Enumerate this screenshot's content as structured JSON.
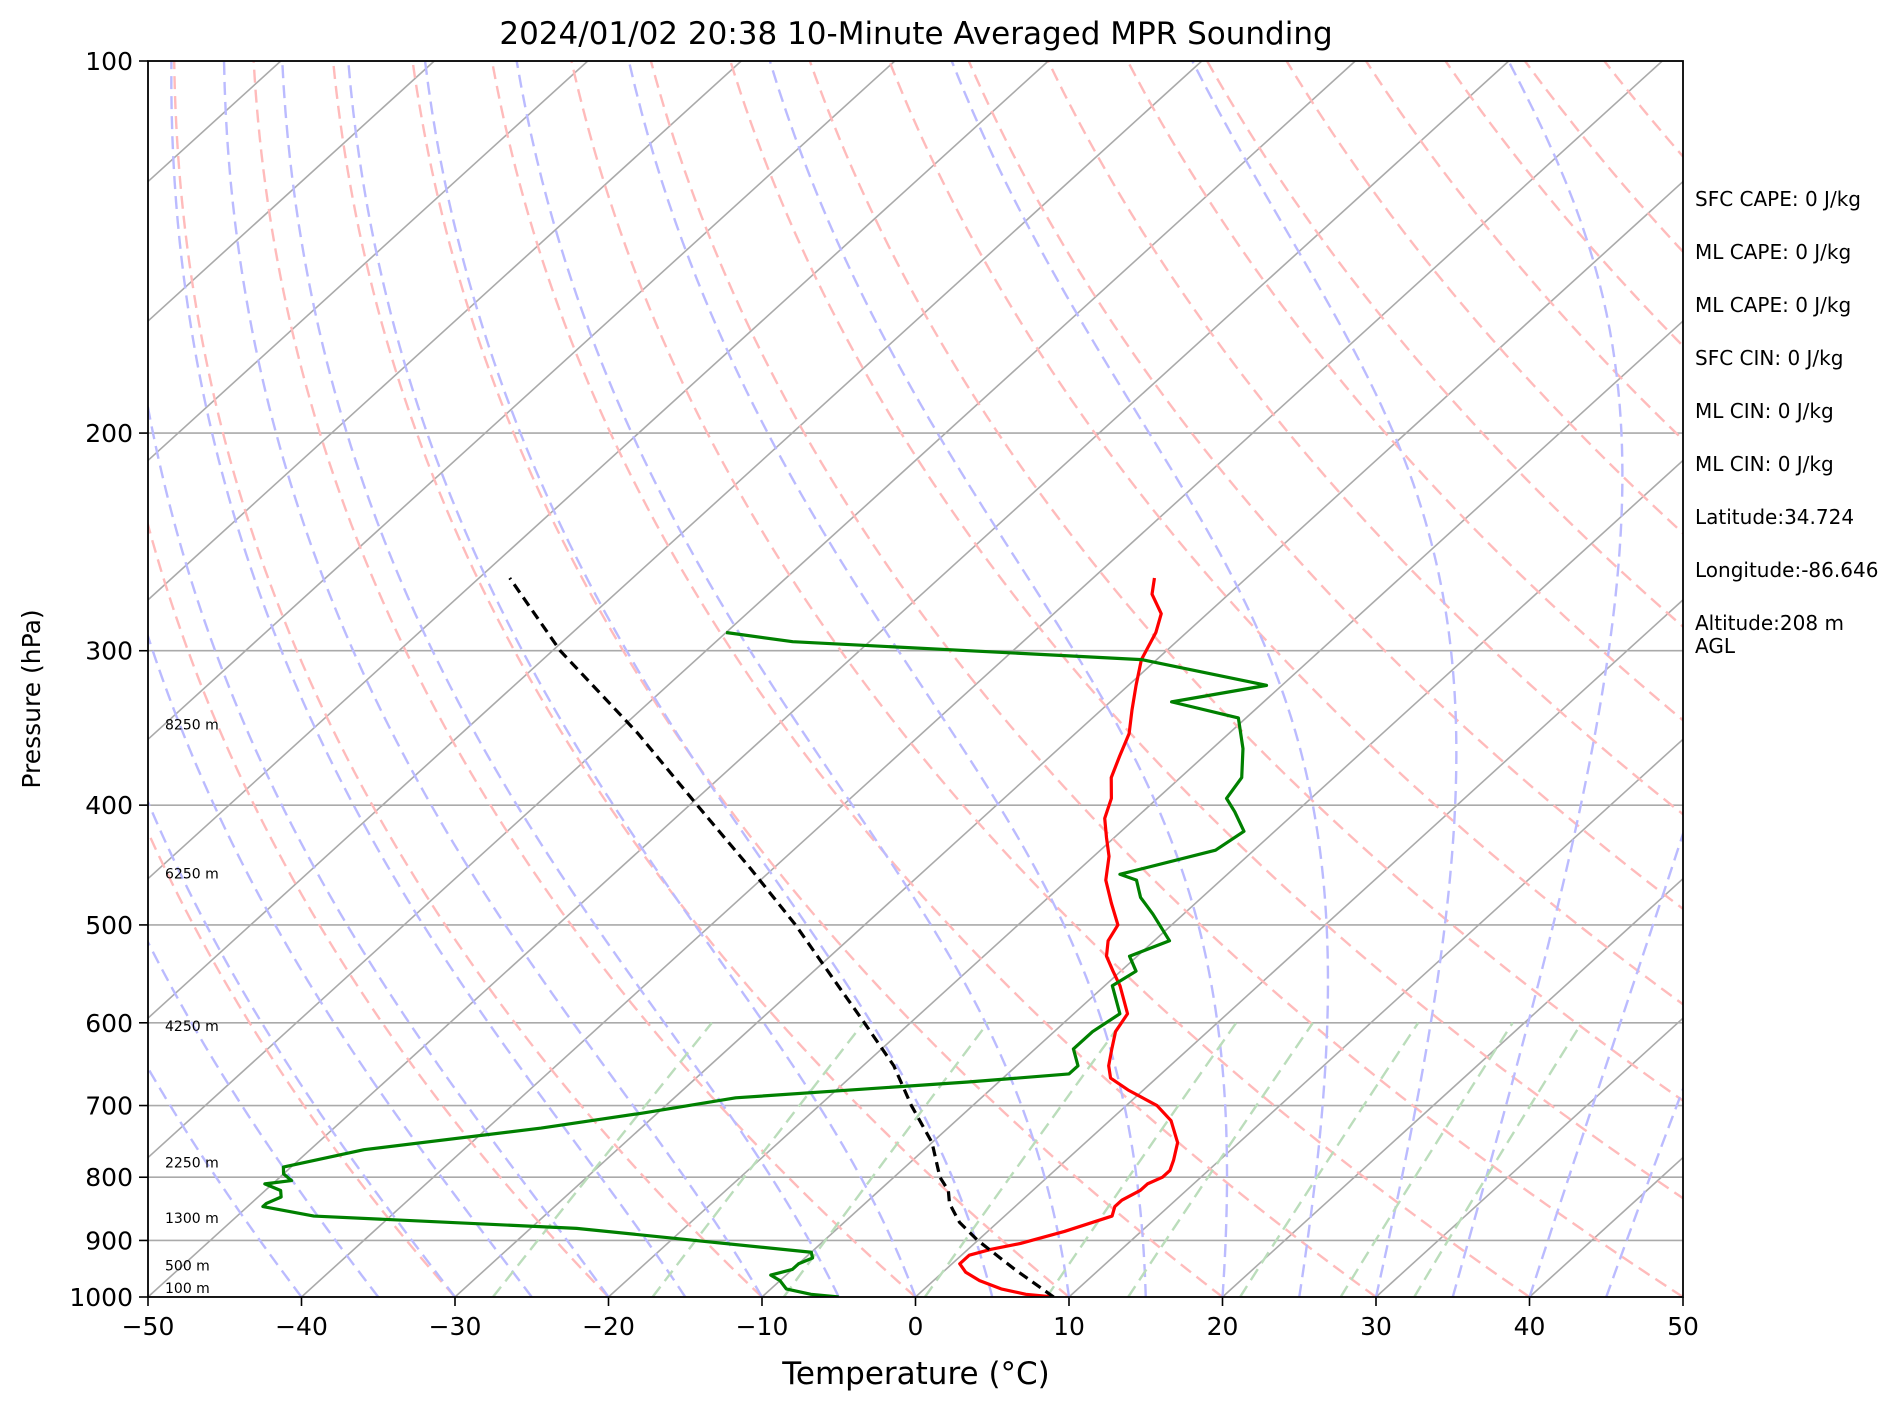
{
  "chart_data": {
    "type": "line",
    "title": "2024/01/02 20:38 10-Minute Averaged MPR Sounding",
    "xlabel": "Temperature (°C)",
    "ylabel": "Pressure (hPa)",
    "xlim": [
      -50,
      50
    ],
    "ylim": [
      1000,
      100
    ],
    "y_scale": "log",
    "skew_t": true,
    "x_ticks": [
      -50,
      -40,
      -30,
      -20,
      -10,
      0,
      10,
      20,
      30,
      40,
      50
    ],
    "x_tick_labels": [
      "−50",
      "−40",
      "−30",
      "−20",
      "−10",
      "0",
      "10",
      "20",
      "30",
      "40",
      "50"
    ],
    "y_ticks": [
      1000,
      900,
      800,
      700,
      600,
      500,
      400,
      300,
      200,
      100
    ],
    "y_tick_labels": [
      "1000",
      "900",
      "800",
      "700",
      "600",
      "500",
      "400",
      "300",
      "200",
      "100"
    ],
    "grid": true,
    "colors": {
      "temperature": "#ff0000",
      "dewpoint": "#008000",
      "parcel": "#000000",
      "isotherm": "#aaaaaa",
      "isobar": "#aaaaaa",
      "dry_adiabat": "#ffbbbb",
      "moist_adiabat": "#bbbbff",
      "mixing_ratio": "#bbddbb"
    },
    "series": [
      {
        "key": "temperature",
        "pressure": [
          1000,
          995,
          985,
          970,
          955,
          940,
          925,
          915,
          905,
          885,
          860,
          845,
          835,
          820,
          810,
          800,
          790,
          775,
          750,
          720,
          700,
          680,
          665,
          650,
          630,
          610,
          590,
          560,
          545,
          530,
          515,
          500,
          480,
          460,
          440,
          425,
          410,
          395,
          380,
          365,
          350,
          335,
          320,
          305,
          290,
          280,
          270,
          262
        ],
        "temperature": [
          9,
          7,
          5,
          3,
          1.5,
          0.5,
          0.5,
          1.5,
          3,
          5,
          7,
          6.5,
          6.5,
          7,
          7,
          7.5,
          7.5,
          7,
          6,
          4,
          2,
          -1,
          -3,
          -4,
          -5,
          -6,
          -6.5,
          -9,
          -10.5,
          -12,
          -13,
          -13.5,
          -15.5,
          -17.5,
          -19,
          -20.5,
          -22,
          -23,
          -24.5,
          -25.5,
          -26.5,
          -28,
          -29.5,
          -31,
          -32,
          -33,
          -35,
          -36
        ]
      },
      {
        "key": "dewpoint",
        "pressure": [
          1000,
          995,
          985,
          970,
          960,
          950,
          940,
          930,
          920,
          880,
          860,
          845,
          840,
          830,
          820,
          810,
          805,
          795,
          785,
          760,
          730,
          710,
          690,
          670,
          660,
          650,
          630,
          610,
          590,
          560,
          545,
          530,
          515,
          490,
          475,
          460,
          455,
          435,
          420,
          405,
          395,
          380,
          360,
          340,
          330,
          320,
          305,
          295,
          290
        ],
        "temperature": [
          -5,
          -7,
          -9,
          -10,
          -11,
          -10,
          -10,
          -9.5,
          -10,
          -27,
          -45,
          -49,
          -49,
          -48.5,
          -49,
          -50.5,
          -49,
          -50,
          -50.5,
          -46.5,
          -36.5,
          -31,
          -26,
          -12,
          -6,
          -6,
          -7.5,
          -7.5,
          -7,
          -9.5,
          -9,
          -10.5,
          -9,
          -12,
          -14,
          -15.5,
          -17,
          -12.5,
          -12,
          -14,
          -15.5,
          -16,
          -18,
          -20.5,
          -26,
          -21,
          -31,
          -55,
          -60
        ]
      },
      {
        "key": "parcel",
        "pressure": [
          1000,
          950,
          900,
          870,
          840,
          820,
          800,
          750,
          700,
          650,
          600,
          550,
          500,
          450,
          400,
          350,
          300,
          262
        ],
        "temperature": [
          9,
          4.5,
          0,
          -2.5,
          -4.5,
          -5.5,
          -7,
          -10,
          -14,
          -18,
          -23,
          -28.5,
          -34.5,
          -41.5,
          -49.5,
          -58.5,
          -69.5,
          -78
        ]
      }
    ],
    "height_labels": [
      "100 m",
      "500 m",
      "1300 m",
      "2250 m",
      "4250 m",
      "6250 m",
      "8250 m"
    ],
    "height_label_pressures": [
      985,
      945,
      865,
      780,
      605,
      455,
      345
    ]
  },
  "stats": [
    {
      "label": "SFC CAPE:",
      "value": "0 J/kg",
      "inline": true
    },
    {
      "label": "ML CAPE:",
      "value": "0 J/kg",
      "inline": true
    },
    {
      "label": "ML CAPE:",
      "value": "0 J/kg",
      "inline": true
    },
    {
      "label": "SFC CIN:",
      "value": "0 J/kg",
      "inline": true
    },
    {
      "label": "ML CIN:",
      "value": "0 J/kg",
      "inline": true
    },
    {
      "label": "ML CIN:",
      "value": "0 J/kg",
      "inline": true
    },
    {
      "label": "Latitude:",
      "value": "34.724",
      "inline": false
    },
    {
      "label": "Longitude:",
      "value": "-86.646",
      "inline": false
    },
    {
      "label": "Altitude:",
      "value": "208 m AGL",
      "inline": false
    }
  ]
}
